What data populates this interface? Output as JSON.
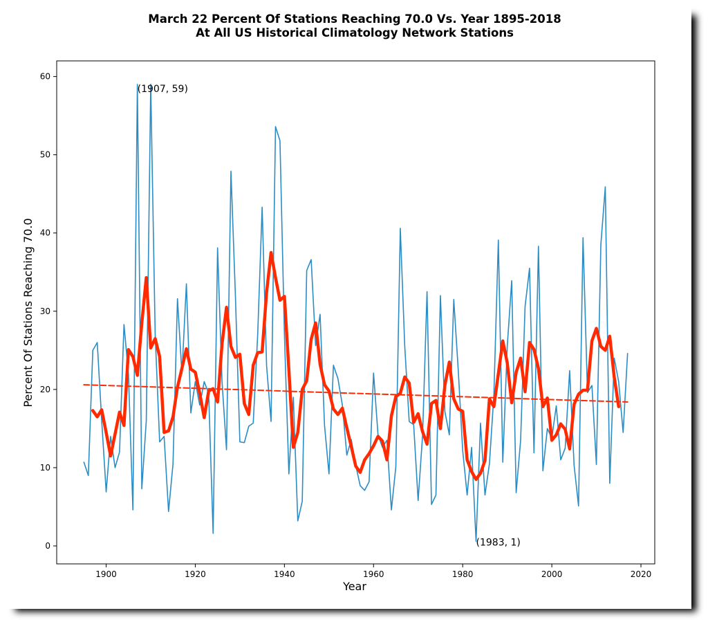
{
  "chart_data": {
    "type": "line",
    "title": "March 22 Percent Of Stations Reaching 70.0 Vs. Year 1895-2018",
    "subtitle": "At All US Historical Climatology Network Stations",
    "x_label": "Year",
    "y_label": "Percent Of Stations Reaching 70.0",
    "xlim": [
      1888.9,
      2023.1
    ],
    "ylim": [
      -2.3,
      62.0
    ],
    "xticks": [
      1900,
      1920,
      1940,
      1960,
      1980,
      2000,
      2020
    ],
    "yticks": [
      0,
      10,
      20,
      30,
      40,
      50,
      60
    ],
    "grid": false,
    "series": [
      {
        "color": "#2b8cc4",
        "width": 1.6,
        "dash": false,
        "x": [
          1895,
          1896,
          1897,
          1898,
          1899,
          1900,
          1901,
          1902,
          1903,
          1904,
          1905,
          1906,
          1907,
          1908,
          1909,
          1910,
          1911,
          1912,
          1913,
          1914,
          1915,
          1916,
          1917,
          1918,
          1919,
          1920,
          1921,
          1922,
          1923,
          1924,
          1925,
          1926,
          1927,
          1928,
          1929,
          1930,
          1931,
          1932,
          1933,
          1934,
          1935,
          1936,
          1937,
          1938,
          1939,
          1940,
          1941,
          1942,
          1943,
          1944,
          1945,
          1946,
          1947,
          1948,
          1949,
          1950,
          1951,
          1952,
          1953,
          1954,
          1955,
          1956,
          1957,
          1958,
          1959,
          1960,
          1961,
          1962,
          1963,
          1964,
          1965,
          1966,
          1967,
          1968,
          1969,
          1970,
          1971,
          1972,
          1973,
          1974,
          1975,
          1976,
          1977,
          1978,
          1979,
          1980,
          1981,
          1982,
          1983,
          1984,
          1985,
          1986,
          1987,
          1988,
          1989,
          1990,
          1991,
          1992,
          1993,
          1994,
          1995,
          1996,
          1997,
          1998,
          1999,
          2000,
          2001,
          2002,
          2003,
          2004,
          2005,
          2006,
          2007,
          2008,
          2009,
          2010,
          2011,
          2012,
          2013,
          2014,
          2015,
          2016,
          2017
        ],
        "values": [
          10.7,
          9,
          25,
          26,
          16,
          6.9,
          14,
          10,
          12,
          28.3,
          22,
          4.6,
          59,
          7.3,
          16,
          59,
          27,
          13.3,
          14,
          4.4,
          10.5,
          31.6,
          22,
          33.5,
          17,
          21,
          18,
          21,
          19.5,
          1.6,
          38.1,
          21,
          12.3,
          47.9,
          32,
          13.3,
          13.2,
          15.3,
          15.7,
          27,
          43.3,
          23,
          15.9,
          53.6,
          51.8,
          27,
          9.2,
          19,
          3.2,
          5.7,
          35.2,
          36.6,
          25.6,
          29.6,
          15.4,
          9.2,
          23.1,
          21.4,
          18,
          11.6,
          13.6,
          10.3,
          7.7,
          7.1,
          8.2,
          22.1,
          14.2,
          12.6,
          13.5,
          4.6,
          10.1,
          40.6,
          25.5,
          15.9,
          15.5,
          5.8,
          14.1,
          32.5,
          5.3,
          6.5,
          32,
          17.2,
          14.2,
          31.5,
          22.5,
          12.2,
          6.5,
          12.6,
          0.6,
          15.7,
          6.5,
          10.5,
          19.3,
          39.1,
          10.7,
          25.5,
          33.9,
          6.8,
          13.5,
          30.6,
          35.5,
          11.9,
          38.3,
          9.6,
          15,
          13.8,
          17.9,
          11,
          12.5,
          22.4,
          10.3,
          5.1,
          39.4,
          19.6,
          20.5,
          10.4,
          38.5,
          45.9,
          8,
          24,
          21,
          14.5,
          24.6
        ]
      },
      {
        "color": "#ff2a00",
        "width": 4.5,
        "dash": false,
        "x": [
          1897,
          1898,
          1899,
          1900,
          1901,
          1902,
          1903,
          1904,
          1905,
          1906,
          1907,
          1908,
          1909,
          1910,
          1911,
          1912,
          1913,
          1914,
          1915,
          1916,
          1917,
          1918,
          1919,
          1920,
          1921,
          1922,
          1923,
          1924,
          1925,
          1926,
          1927,
          1928,
          1929,
          1930,
          1931,
          1932,
          1933,
          1934,
          1935,
          1936,
          1937,
          1938,
          1939,
          1940,
          1941,
          1942,
          1943,
          1944,
          1945,
          1946,
          1947,
          1948,
          1949,
          1950,
          1951,
          1952,
          1953,
          1954,
          1955,
          1956,
          1957,
          1958,
          1959,
          1960,
          1961,
          1962,
          1963,
          1964,
          1965,
          1966,
          1967,
          1968,
          1969,
          1970,
          1971,
          1972,
          1973,
          1974,
          1975,
          1976,
          1977,
          1978,
          1979,
          1980,
          1981,
          1982,
          1983,
          1984,
          1985,
          1986,
          1987,
          1988,
          1989,
          1990,
          1991,
          1992,
          1993,
          1994,
          1995,
          1996,
          1997,
          1998,
          1999,
          2000,
          2001,
          2002,
          2003,
          2004,
          2005,
          2006,
          2007,
          2008,
          2009,
          2010,
          2011,
          2012,
          2013,
          2014,
          2015
        ],
        "values": [
          17.3,
          16.5,
          17.4,
          14.5,
          11.5,
          14.3,
          17.1,
          15.4,
          25.1,
          24.2,
          21.8,
          28.5,
          34.3,
          25.3,
          26.5,
          24.2,
          14.5,
          14.7,
          16.5,
          20.3,
          22.7,
          25.2,
          22.6,
          22.2,
          19.5,
          16.4,
          19.8,
          20.1,
          18.4,
          25.8,
          30.5,
          25.5,
          24.1,
          24.5,
          18.2,
          16.8,
          23.1,
          24.7,
          24.8,
          32.4,
          37.5,
          34.3,
          31.4,
          31.9,
          22.5,
          12.6,
          14.5,
          20,
          21.1,
          26.4,
          28.5,
          23.2,
          20.6,
          19.8,
          17.5,
          16.8,
          17.6,
          15.1,
          12.7,
          10.2,
          9.4,
          11,
          11.8,
          12.8,
          14,
          13.4,
          11,
          16.6,
          19.1,
          19.5,
          21.6,
          20.8,
          15.8,
          16.9,
          14.6,
          13,
          18.2,
          18.6,
          15,
          20.5,
          23.5,
          18.8,
          17.5,
          17.2,
          11,
          9.5,
          8.5,
          9.3,
          10.9,
          18.8,
          17.8,
          22,
          26.2,
          23.4,
          18.3,
          22.2,
          24,
          19.7,
          26,
          25.1,
          22.7,
          17.8,
          18.9,
          13.5,
          14.2,
          15.6,
          14.9,
          12.4,
          18.1,
          19.4,
          19.9,
          19.9,
          26.2,
          27.8,
          25.5,
          25,
          26.8,
          21.6,
          17.8
        ]
      },
      {
        "color": "#ff2a00",
        "width": 2,
        "dash": true,
        "x": [
          1895,
          2017
        ],
        "values": [
          20.6,
          18.4
        ]
      }
    ],
    "annotations": [
      {
        "text": "(1907, 59)",
        "x": 1907,
        "y": 59
      },
      {
        "text": "(1983, 1)",
        "x": 1983,
        "y": 1
      }
    ]
  }
}
